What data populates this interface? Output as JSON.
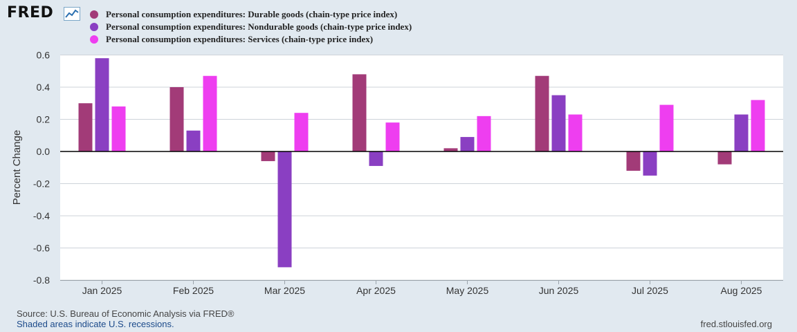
{
  "header": {
    "logo_text": "FRED",
    "legend": [
      {
        "label": "Personal consumption expenditures: Durable goods (chain-type price index)",
        "color": "#a23b78"
      },
      {
        "label": "Personal consumption expenditures: Nondurable goods (chain-type price index)",
        "color": "#8a3fc2"
      },
      {
        "label": "Personal consumption expenditures: Services (chain-type price index)",
        "color": "#ee3ef0"
      }
    ]
  },
  "chart_data": {
    "type": "bar",
    "title": "",
    "xlabel": "",
    "ylabel": "Percent Change",
    "ylim": [
      -0.8,
      0.6
    ],
    "yticks": [
      0.6,
      0.4,
      0.2,
      0.0,
      -0.2,
      -0.4,
      -0.6,
      -0.8
    ],
    "ytick_labels": [
      "0.6",
      "0.4",
      "0.2",
      "0.0",
      "-0.2",
      "-0.4",
      "-0.6",
      "-0.8"
    ],
    "categories": [
      "Jan 2025",
      "Feb 2025",
      "Mar 2025",
      "Apr 2025",
      "May 2025",
      "Jun 2025",
      "Jul 2025",
      "Aug 2025"
    ],
    "series": [
      {
        "name": "Personal consumption expenditures: Durable goods (chain-type price index)",
        "color": "#a23b78",
        "values": [
          0.3,
          0.4,
          -0.06,
          0.48,
          0.02,
          0.47,
          -0.12,
          -0.08
        ]
      },
      {
        "name": "Personal consumption expenditures: Nondurable goods (chain-type price index)",
        "color": "#8a3fc2",
        "values": [
          0.58,
          0.13,
          -0.72,
          -0.09,
          0.09,
          0.35,
          -0.15,
          0.23
        ]
      },
      {
        "name": "Personal consumption expenditures: Services (chain-type price index)",
        "color": "#ee3ef0",
        "values": [
          0.28,
          0.47,
          0.24,
          0.18,
          0.22,
          0.23,
          0.29,
          0.32
        ]
      }
    ],
    "grid": true
  },
  "footer": {
    "source": "Source: U.S. Bureau of Economic Analysis via FRED®",
    "recessions": "Shaded areas indicate U.S. recessions.",
    "url": "fred.stlouisfed.org"
  }
}
